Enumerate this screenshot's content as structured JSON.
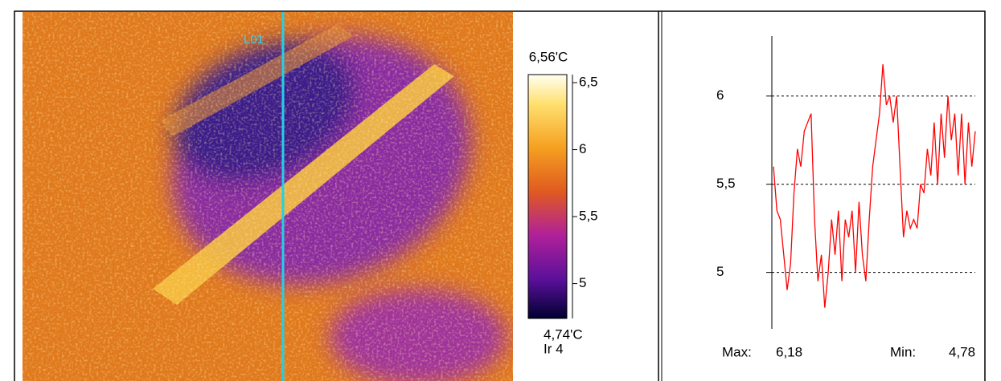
{
  "thermal_view": {
    "marker_label": "L01",
    "colorbar": {
      "max": {
        "value": 6.56,
        "label": "6,56'C"
      },
      "min": {
        "value": 4.74,
        "label": "4,74'C"
      },
      "ticks": [
        {
          "value": 6.5,
          "label": "6,5"
        },
        6,
        {
          "value": 5.5,
          "label": "5,5"
        },
        5
      ]
    },
    "palette_label": "Ir 4"
  },
  "chart_data": {
    "type": "line",
    "color": "#ff0000",
    "values": [
      5.6,
      5.35,
      5.3,
      5.1,
      4.9,
      5.05,
      5.45,
      5.7,
      5.6,
      5.8,
      5.85,
      5.9,
      5.3,
      4.95,
      5.1,
      4.8,
      5.0,
      5.3,
      5.1,
      5.35,
      4.95,
      5.3,
      5.2,
      5.35,
      5.0,
      5.4,
      5.1,
      4.95,
      5.3,
      5.6,
      5.75,
      5.9,
      6.18,
      5.95,
      6.0,
      5.85,
      6.0,
      5.6,
      5.2,
      5.35,
      5.25,
      5.3,
      5.25,
      5.5,
      5.45,
      5.7,
      5.55,
      5.85,
      5.5,
      5.9,
      5.65,
      6.0,
      5.75,
      5.9,
      5.55,
      5.9,
      5.5,
      5.85,
      5.6,
      5.8
    ],
    "ylim": [
      4.68,
      6.34
    ],
    "yticks": [
      5,
      {
        "value": 5.5,
        "label": "5,5"
      },
      6
    ],
    "grid": true,
    "stats": {
      "max_label": "Max:",
      "max": {
        "value": 6.18,
        "label": "6,18"
      },
      "min_label": "Min:",
      "min": {
        "value": 4.78,
        "label": "4,78"
      }
    }
  }
}
